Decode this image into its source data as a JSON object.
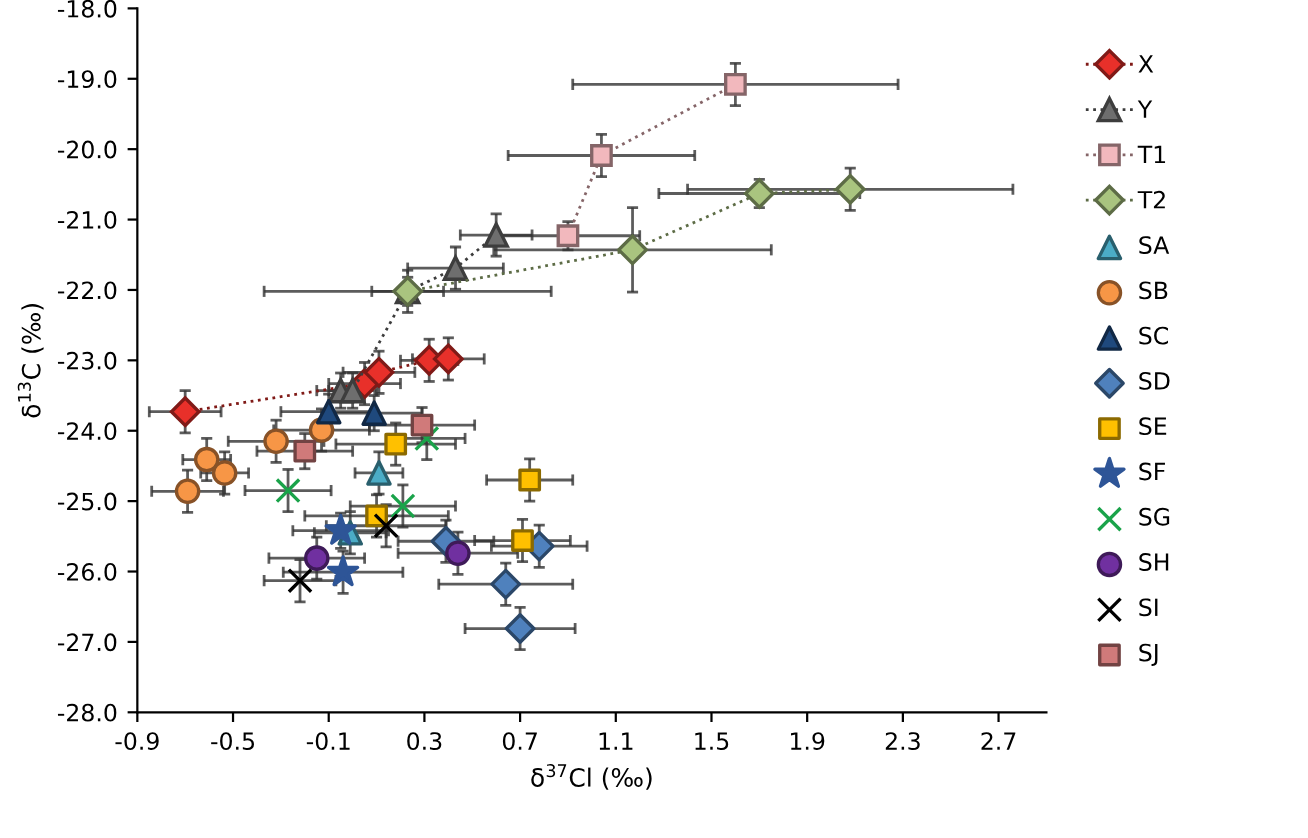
{
  "chart_data": {
    "type": "scatter",
    "xlabel": "δ$^{37}$Cl (‰)",
    "ylabel": "δ$^{13}$C (‰)",
    "xlim": [
      -0.9,
      2.9
    ],
    "xticks": [
      -0.9,
      -0.5,
      -0.1,
      0.3,
      0.7,
      1.1,
      1.5,
      1.9,
      2.3,
      2.7
    ],
    "ylim": [
      -28,
      -18
    ],
    "yticks": [
      {
        "value": -28,
        "label": "-28.0"
      },
      {
        "value": -27,
        "label": "-27.0"
      },
      {
        "value": -26,
        "label": "-26.0"
      },
      {
        "value": -25,
        "label": "-25.0"
      },
      {
        "value": -24,
        "label": "-24.0"
      },
      {
        "value": -23,
        "label": "-23.0"
      },
      {
        "value": -22,
        "label": "-22.0"
      },
      {
        "value": -21,
        "label": "-21.0"
      },
      {
        "value": -20,
        "label": "-20.0"
      },
      {
        "value": -19,
        "label": "-19.0"
      },
      {
        "value": -18,
        "label": "-18.0"
      }
    ],
    "grid": false,
    "legend": "right",
    "series": [
      {
        "name": "X",
        "type": "line",
        "color": "#e8302a",
        "marker": "diamond",
        "line_style": "dotted",
        "x": [
          -0.7,
          0.05,
          0.11,
          0.32,
          0.4
        ],
        "values": [
          -23.73,
          -23.33,
          -23.17,
          -23.0,
          -22.98
        ],
        "errors": [
          0.3,
          0.3,
          0.3,
          0.3,
          0.3
        ],
        "xerrors": [
          0.15,
          0.15,
          0.15,
          0.12,
          0.15
        ]
      },
      {
        "name": "Y",
        "type": "line",
        "color": "#6e6e6e",
        "marker": "triangle",
        "line_style": "dotted",
        "x": [
          -0.05,
          0.0,
          0.23,
          0.43,
          0.6
        ],
        "values": [
          -23.43,
          -23.43,
          -22.02,
          -21.69,
          -21.22
        ],
        "errors": [
          0.25,
          0.25,
          0.3,
          0.3,
          0.3
        ],
        "xerrors": [
          0.1,
          0.1,
          0.15,
          0.2,
          0.15
        ]
      },
      {
        "name": "T1",
        "type": "line",
        "color": "#f2b8bd",
        "marker": "square",
        "line_style": "dotted",
        "x": [
          0.9,
          1.04,
          1.6
        ],
        "values": [
          -21.23,
          -20.09,
          -19.08
        ],
        "errors": [
          0.2,
          0.3,
          0.3
        ],
        "xerrors": [
          0.3,
          0.39,
          0.68
        ]
      },
      {
        "name": "T2",
        "type": "line",
        "color": "#a9c47f",
        "marker": "diamond",
        "line_style": "dotted",
        "x": [
          0.23,
          1.17,
          1.7,
          2.08
        ],
        "values": [
          -22.02,
          -21.43,
          -20.63,
          -20.57
        ],
        "errors": [
          0.2,
          0.6,
          0.2,
          0.3
        ],
        "xerrors": [
          0.6,
          0.58,
          0.42,
          0.68
        ]
      },
      {
        "name": "SA",
        "color": "#4bacc6",
        "marker": "triangle",
        "x": [
          0.11,
          -0.01
        ],
        "values": [
          -24.6,
          -25.45
        ],
        "errors": [
          0.3,
          0.3
        ],
        "xerrors": [
          0.1,
          0.15
        ]
      },
      {
        "name": "SB",
        "color": "#f79646",
        "marker": "circle",
        "x": [
          -0.61,
          -0.535,
          -0.69,
          -0.32,
          -0.13
        ],
        "values": [
          -24.41,
          -24.6,
          -24.86,
          -24.15,
          -23.99
        ],
        "errors": [
          0.3,
          0.3,
          0.3,
          0.3,
          0.3
        ],
        "xerrors": [
          0.1,
          0.1,
          0.15,
          0.2,
          0.2
        ]
      },
      {
        "name": "SC",
        "color": "#1f497d",
        "marker": "triangle",
        "x": [
          -0.1,
          0.09
        ],
        "values": [
          -23.73,
          -23.75
        ],
        "errors": [
          0.25,
          0.25
        ],
        "xerrors": [
          0.2,
          0.2
        ]
      },
      {
        "name": "SD",
        "color": "#4f81bd",
        "marker": "diamond",
        "x": [
          0.39,
          0.78,
          0.64,
          0.7
        ],
        "values": [
          -25.57,
          -25.64,
          -26.18,
          -26.81
        ],
        "errors": [
          0.3,
          0.3,
          0.3,
          0.3
        ],
        "xerrors": [
          0.2,
          0.2,
          0.28,
          0.23
        ]
      },
      {
        "name": "SE",
        "color": "#ffc000",
        "marker": "square",
        "x": [
          0.18,
          0.74,
          0.71,
          0.1
        ],
        "values": [
          -24.19,
          -24.7,
          -25.56,
          -25.21
        ],
        "errors": [
          0.3,
          0.3,
          0.3,
          0.3
        ],
        "xerrors": [
          0.25,
          0.18,
          0.2,
          0.3
        ]
      },
      {
        "name": "SF",
        "color": "#2e5597",
        "marker": "star",
        "x": [
          -0.05,
          -0.04
        ],
        "values": [
          -25.42,
          -26.01
        ],
        "errors": [
          0.25,
          0.3
        ],
        "xerrors": [
          0.2,
          0.25
        ]
      },
      {
        "name": "SG",
        "color": "#1aa34a",
        "marker": "cross",
        "x": [
          -0.27,
          0.21,
          0.31
        ],
        "values": [
          -24.85,
          -25.07,
          -24.11
        ],
        "errors": [
          0.3,
          0.3,
          0.3
        ],
        "xerrors": [
          0.18,
          0.22,
          0.16
        ]
      },
      {
        "name": "SH",
        "color": "#7030a0",
        "marker": "circle",
        "x": [
          -0.15,
          0.44
        ],
        "values": [
          -25.81,
          -25.74
        ],
        "errors": [
          0.3,
          0.3
        ],
        "xerrors": [
          0.2,
          0.25
        ]
      },
      {
        "name": "SI",
        "color": "#000000",
        "marker": "cross",
        "x": [
          -0.22,
          0.14
        ],
        "values": [
          -26.13,
          -25.35
        ],
        "errors": [
          0.3,
          0.3
        ],
        "xerrors": [
          0.15,
          0.25
        ]
      },
      {
        "name": "SJ",
        "color": "#d07a7a",
        "marker": "square",
        "x": [
          0.29,
          -0.2
        ],
        "values": [
          -23.92,
          -24.29
        ],
        "errors": [
          0.25,
          0.25
        ],
        "xerrors": [
          0.22,
          0.2
        ]
      }
    ]
  }
}
